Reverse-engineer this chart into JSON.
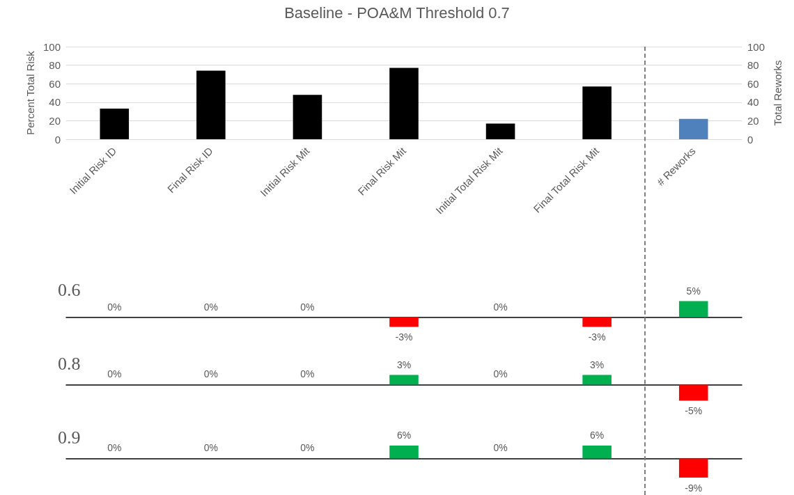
{
  "chart_data": [
    {
      "type": "bar",
      "title": "Baseline - POA&M Threshold 0.7",
      "ylabel": "Percent Total Risk",
      "y2label": "Total Reworks",
      "categories": [
        "Initial Risk ID",
        "Final Risk ID",
        "Initial Risk Mit",
        "Final Risk Mit",
        "Initial Total Risk Mit",
        "Final Total Risk Mit",
        "# Reworks"
      ],
      "series": [
        {
          "color": "#000000",
          "values": [
            33,
            74,
            48,
            77,
            17,
            57,
            null
          ]
        },
        {
          "color": "#4f81bd",
          "axis": "y2",
          "values": [
            null,
            null,
            null,
            null,
            null,
            null,
            22
          ]
        }
      ],
      "ylim": [
        0,
        100
      ],
      "yticks": [
        0,
        20,
        40,
        60,
        80,
        100
      ],
      "y2lim": [
        0,
        100
      ],
      "y2ticks": [
        0,
        20,
        40,
        60,
        80,
        100
      ],
      "grid": "y"
    },
    {
      "type": "bar",
      "title": "0.6",
      "categories": [
        null,
        null,
        null,
        null,
        null,
        null,
        null
      ],
      "values": [
        0,
        0,
        0,
        -3,
        0,
        -3,
        5
      ],
      "colors": [
        "#00b050",
        "#00b050",
        "#00b050",
        "#ff0000",
        "#00b050",
        "#ff0000",
        "#00b050"
      ],
      "value_labels": [
        "0%",
        "0%",
        "0%",
        "-3%",
        "0%",
        "-3%",
        "5%"
      ],
      "tick_labels": false
    },
    {
      "type": "bar",
      "title": "0.8",
      "categories": [
        null,
        null,
        null,
        null,
        null,
        null,
        null
      ],
      "values": [
        0,
        0,
        0,
        3,
        0,
        3,
        -5
      ],
      "colors": [
        "#00b050",
        "#00b050",
        "#00b050",
        "#00b050",
        "#00b050",
        "#00b050",
        "#ff0000"
      ],
      "value_labels": [
        "0%",
        "0%",
        "0%",
        "3%",
        "0%",
        "3%",
        "-5%"
      ],
      "tick_labels": false
    },
    {
      "type": "bar",
      "title": "0.9",
      "categories": [
        null,
        null,
        null,
        null,
        null,
        null,
        null
      ],
      "values": [
        0,
        0,
        0,
        6,
        0,
        6,
        -9
      ],
      "colors": [
        "#00b050",
        "#00b050",
        "#00b050",
        "#00b050",
        "#00b050",
        "#00b050",
        "#ff0000"
      ],
      "value_labels": [
        "0%",
        "0%",
        "0%",
        "6%",
        "0%",
        "6%",
        "-9%"
      ],
      "tick_labels": false
    }
  ]
}
